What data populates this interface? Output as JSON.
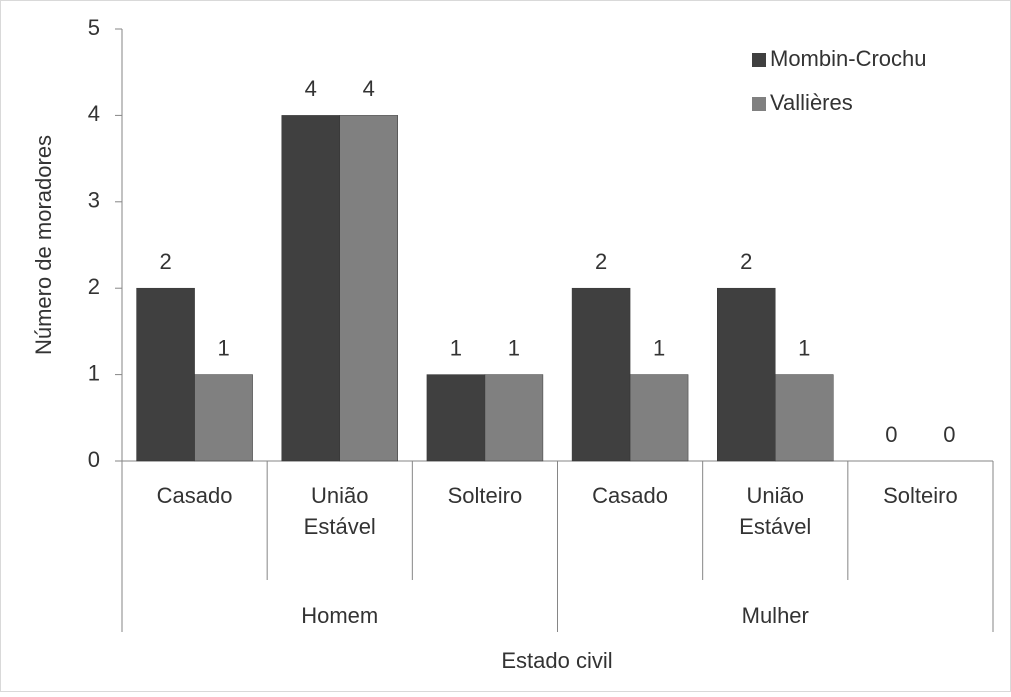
{
  "chart_data": {
    "type": "bar",
    "x_label": "Estado civil",
    "y_label": "Número de moradores",
    "groups": [
      {
        "name": "Homem",
        "categories": [
          "Casado",
          "União Estável",
          "Solteiro"
        ]
      },
      {
        "name": "Mulher",
        "categories": [
          "Casado",
          "União Estável",
          "Solteiro"
        ]
      }
    ],
    "series": [
      {
        "name": "Mombin-Crochu",
        "color": "#404040",
        "values": [
          2,
          4,
          1,
          2,
          2,
          0
        ]
      },
      {
        "name": "Vallières",
        "color": "#808080",
        "values": [
          1,
          4,
          1,
          1,
          1,
          0
        ]
      }
    ],
    "ylim": [
      0,
      5
    ],
    "yticks": [
      0,
      1,
      2,
      3,
      4,
      5
    ],
    "legend": "top-right"
  }
}
